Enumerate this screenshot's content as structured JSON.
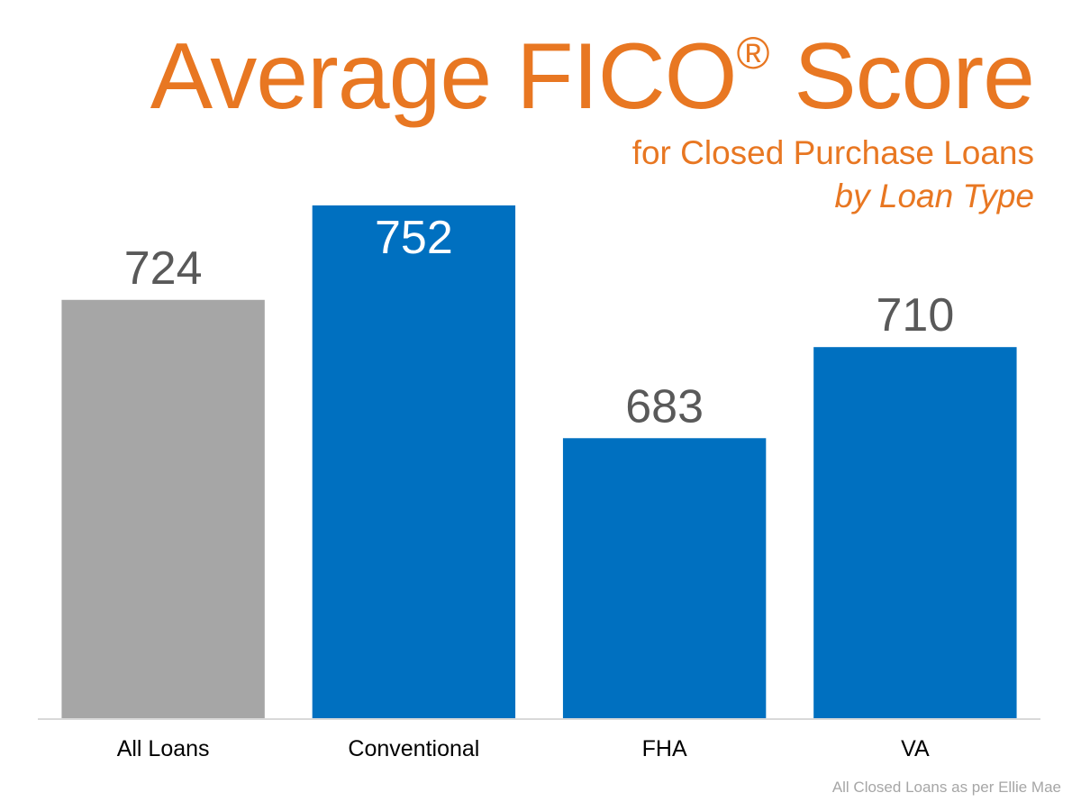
{
  "header": {
    "title_main": "Average FICO",
    "title_mark": "®",
    "title_end": " Score",
    "subtitle": "for Closed Purchase Loans",
    "subtitle_italic": "by Loan Type"
  },
  "footnote": "All Closed Loans as per Ellie Mae",
  "colors": {
    "title": "#e87722",
    "bar_primary": "#0070c0",
    "bar_highlight": "#a6a6a6",
    "value_label_dark": "#595959",
    "value_label_light": "#ffffff",
    "axis": "#d9d9d9",
    "category_label": "#000000"
  },
  "chart_data": {
    "type": "bar",
    "title": "Average FICO® Score",
    "subtitle": "for Closed Purchase Loans by Loan Type",
    "categories": [
      "All Loans",
      "Conventional",
      "FHA",
      "VA"
    ],
    "values": [
      724,
      752,
      683,
      710
    ],
    "value_labels": [
      "724",
      "752",
      "683",
      "710"
    ],
    "bar_colors": [
      "#a6a6a6",
      "#0070c0",
      "#0070c0",
      "#0070c0"
    ],
    "label_inside": [
      false,
      true,
      false,
      false
    ],
    "xlabel": "",
    "ylabel": "",
    "ylim": [
      600,
      760
    ],
    "grid": false,
    "legend": "none"
  }
}
